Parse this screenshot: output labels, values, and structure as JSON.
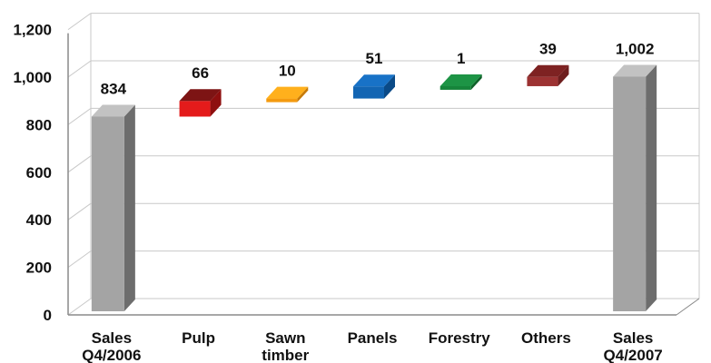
{
  "chart_data": {
    "type": "bar",
    "subtype": "waterfall",
    "title": "",
    "xlabel": "",
    "ylabel": "",
    "ylim": [
      0,
      1200
    ],
    "yticks": [
      "0",
      "200",
      "400",
      "600",
      "800",
      "1,000",
      "1,200"
    ],
    "grid": true,
    "bars": [
      {
        "label_lines": [
          "Sales",
          "Q4/2006"
        ],
        "base": 0,
        "value": 834,
        "value_label": "834",
        "kind": "total",
        "colors": {
          "front": "#a4a4a4",
          "side": "#6d6d6d",
          "top": "#c2c2c2"
        }
      },
      {
        "label_lines": [
          "Pulp"
        ],
        "base": 834,
        "value": 66,
        "value_label": "66",
        "kind": "increase",
        "colors": {
          "front": "#e41b1b",
          "side": "#8e0f0f",
          "top": "#7d1414"
        }
      },
      {
        "label_lines": [
          "Sawn",
          "timber"
        ],
        "base": 900,
        "value": 10,
        "value_label": "10",
        "kind": "increase",
        "colors": {
          "front": "#f49a0e",
          "side": "#c67a08",
          "top": "#ffb01c"
        }
      },
      {
        "label_lines": [
          "Panels"
        ],
        "base": 910,
        "value": 51,
        "value_label": "51",
        "kind": "increase",
        "colors": {
          "front": "#1265b3",
          "side": "#0a4a87",
          "top": "#1872c7"
        }
      },
      {
        "label_lines": [
          "Forestry"
        ],
        "base": 961,
        "value": 1,
        "value_label": "1",
        "kind": "increase",
        "colors": {
          "front": "#16843a",
          "side": "#0e6129",
          "top": "#1d9445"
        }
      },
      {
        "label_lines": [
          "Others"
        ],
        "base": 962,
        "value": 39,
        "value_label": "39",
        "kind": "increase",
        "colors": {
          "front": "#9c3232",
          "side": "#6e1d1d",
          "top": "#7e2222"
        }
      },
      {
        "label_lines": [
          "Sales",
          "Q4/2007"
        ],
        "base": 0,
        "value": 1002,
        "value_label": "1,002",
        "kind": "total",
        "colors": {
          "front": "#a4a4a4",
          "side": "#6d6d6d",
          "top": "#c2c2c2"
        }
      }
    ]
  },
  "colors": {
    "grid": "#c8c8c8",
    "axis": "#8a8a8a",
    "background": "#ffffff"
  }
}
